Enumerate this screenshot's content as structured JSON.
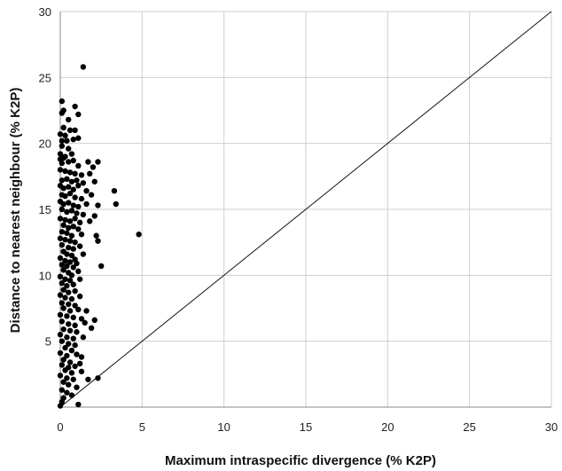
{
  "chart_data": {
    "type": "scatter",
    "title": "",
    "xlabel": "Maximum intraspecific divergence (% K2P)",
    "ylabel": "Distance to nearest neighbour (% K2P)",
    "xlim": [
      0,
      30
    ],
    "ylim": [
      0,
      30
    ],
    "x_ticks": [
      0,
      5,
      10,
      15,
      20,
      25,
      30
    ],
    "y_ticks": [
      5,
      10,
      15,
      20,
      25,
      30
    ],
    "grid": true,
    "reference_line": {
      "label": "",
      "x": [
        0,
        30
      ],
      "y": [
        0,
        30
      ]
    },
    "series": [
      {
        "marker_color": "#000000",
        "points": [
          [
            1.4,
            25.8
          ],
          [
            0.1,
            23.2
          ],
          [
            0.1,
            22.3
          ],
          [
            0.2,
            22.5
          ],
          [
            0.9,
            22.8
          ],
          [
            1.1,
            22.2
          ],
          [
            0.5,
            21.8
          ],
          [
            0.2,
            21.2
          ],
          [
            0.6,
            21.0
          ],
          [
            0.9,
            21.0
          ],
          [
            0.0,
            20.7
          ],
          [
            0.3,
            20.6
          ],
          [
            0.1,
            20.2
          ],
          [
            0.4,
            20.2
          ],
          [
            0.8,
            20.3
          ],
          [
            1.1,
            20.4
          ],
          [
            0.1,
            19.8
          ],
          [
            0.5,
            19.6
          ],
          [
            0.0,
            19.2
          ],
          [
            0.3,
            19.0
          ],
          [
            0.7,
            19.2
          ],
          [
            0.0,
            18.8
          ],
          [
            0.1,
            18.5
          ],
          [
            0.2,
            18.9
          ],
          [
            0.5,
            18.6
          ],
          [
            0.8,
            18.7
          ],
          [
            1.1,
            18.3
          ],
          [
            1.7,
            18.6
          ],
          [
            2.3,
            18.6
          ],
          [
            2.0,
            18.2
          ],
          [
            0.0,
            18.0
          ],
          [
            0.3,
            17.9
          ],
          [
            0.6,
            17.8
          ],
          [
            0.9,
            17.7
          ],
          [
            1.3,
            17.6
          ],
          [
            1.8,
            17.7
          ],
          [
            0.1,
            17.2
          ],
          [
            0.4,
            17.3
          ],
          [
            0.7,
            17.1
          ],
          [
            1.0,
            17.2
          ],
          [
            1.4,
            17.0
          ],
          [
            2.1,
            17.1
          ],
          [
            0.0,
            16.8
          ],
          [
            0.2,
            16.6
          ],
          [
            0.5,
            16.7
          ],
          [
            0.8,
            16.5
          ],
          [
            1.1,
            16.8
          ],
          [
            1.6,
            16.4
          ],
          [
            3.3,
            16.4
          ],
          [
            0.1,
            16.1
          ],
          [
            0.3,
            16.0
          ],
          [
            0.6,
            16.2
          ],
          [
            0.9,
            15.9
          ],
          [
            1.3,
            15.8
          ],
          [
            1.9,
            16.1
          ],
          [
            0.0,
            15.6
          ],
          [
            0.2,
            15.4
          ],
          [
            0.5,
            15.5
          ],
          [
            0.8,
            15.3
          ],
          [
            1.1,
            15.2
          ],
          [
            1.6,
            15.4
          ],
          [
            2.3,
            15.3
          ],
          [
            3.4,
            15.4
          ],
          [
            0.1,
            15.0
          ],
          [
            0.4,
            14.8
          ],
          [
            0.7,
            14.9
          ],
          [
            1.0,
            14.7
          ],
          [
            1.4,
            14.6
          ],
          [
            2.1,
            14.5
          ],
          [
            0.0,
            14.3
          ],
          [
            0.3,
            14.2
          ],
          [
            0.6,
            14.1
          ],
          [
            0.9,
            14.3
          ],
          [
            1.2,
            14.0
          ],
          [
            1.8,
            14.1
          ],
          [
            0.2,
            13.8
          ],
          [
            0.5,
            13.6
          ],
          [
            0.8,
            13.7
          ],
          [
            1.1,
            13.5
          ],
          [
            0.1,
            13.3
          ],
          [
            0.4,
            13.2
          ],
          [
            0.7,
            13.0
          ],
          [
            1.3,
            13.1
          ],
          [
            2.2,
            13.0
          ],
          [
            4.8,
            13.1
          ],
          [
            0.0,
            12.8
          ],
          [
            0.3,
            12.7
          ],
          [
            0.6,
            12.6
          ],
          [
            0.9,
            12.5
          ],
          [
            2.3,
            12.6
          ],
          [
            0.1,
            12.3
          ],
          [
            0.5,
            12.1
          ],
          [
            0.8,
            12.0
          ],
          [
            1.2,
            12.2
          ],
          [
            0.2,
            11.8
          ],
          [
            0.4,
            11.6
          ],
          [
            0.7,
            11.5
          ],
          [
            1.4,
            11.6
          ],
          [
            0.0,
            11.3
          ],
          [
            0.3,
            11.1
          ],
          [
            0.6,
            11.0
          ],
          [
            0.9,
            11.2
          ],
          [
            0.1,
            10.8
          ],
          [
            0.4,
            10.7
          ],
          [
            0.8,
            10.6
          ],
          [
            1.0,
            10.9
          ],
          [
            2.5,
            10.7
          ],
          [
            0.2,
            10.4
          ],
          [
            0.5,
            10.2
          ],
          [
            0.7,
            10.0
          ],
          [
            1.1,
            10.3
          ],
          [
            0.0,
            9.9
          ],
          [
            0.3,
            9.7
          ],
          [
            0.6,
            9.6
          ],
          [
            1.2,
            9.7
          ],
          [
            0.1,
            9.4
          ],
          [
            0.4,
            9.2
          ],
          [
            0.8,
            9.3
          ],
          [
            0.2,
            8.9
          ],
          [
            0.5,
            8.7
          ],
          [
            0.9,
            8.8
          ],
          [
            0.0,
            8.5
          ],
          [
            0.3,
            8.3
          ],
          [
            0.7,
            8.2
          ],
          [
            1.2,
            8.4
          ],
          [
            0.1,
            7.9
          ],
          [
            0.5,
            7.8
          ],
          [
            0.9,
            7.7
          ],
          [
            0.2,
            7.5
          ],
          [
            0.6,
            7.3
          ],
          [
            1.1,
            7.4
          ],
          [
            1.6,
            7.3
          ],
          [
            0.0,
            7.0
          ],
          [
            0.4,
            6.9
          ],
          [
            0.8,
            6.8
          ],
          [
            1.3,
            6.7
          ],
          [
            2.1,
            6.6
          ],
          [
            0.1,
            6.5
          ],
          [
            0.5,
            6.3
          ],
          [
            0.9,
            6.2
          ],
          [
            1.5,
            6.4
          ],
          [
            1.9,
            6.0
          ],
          [
            0.2,
            5.9
          ],
          [
            0.6,
            5.8
          ],
          [
            1.0,
            5.7
          ],
          [
            0.0,
            5.5
          ],
          [
            0.4,
            5.3
          ],
          [
            0.8,
            5.2
          ],
          [
            1.4,
            5.3
          ],
          [
            0.1,
            5.0
          ],
          [
            0.5,
            4.8
          ],
          [
            0.9,
            4.7
          ],
          [
            0.3,
            4.5
          ],
          [
            0.7,
            4.3
          ],
          [
            0.0,
            4.1
          ],
          [
            0.4,
            3.9
          ],
          [
            1.0,
            4.0
          ],
          [
            1.3,
            3.8
          ],
          [
            0.2,
            3.6
          ],
          [
            0.6,
            3.4
          ],
          [
            0.1,
            3.2
          ],
          [
            0.5,
            3.0
          ],
          [
            0.9,
            3.1
          ],
          [
            1.2,
            3.3
          ],
          [
            0.3,
            2.8
          ],
          [
            0.7,
            2.6
          ],
          [
            1.3,
            2.7
          ],
          [
            0.0,
            2.4
          ],
          [
            0.4,
            2.2
          ],
          [
            0.8,
            2.1
          ],
          [
            1.7,
            2.1
          ],
          [
            2.3,
            2.2
          ],
          [
            0.2,
            1.9
          ],
          [
            0.5,
            1.7
          ],
          [
            1.0,
            1.5
          ],
          [
            0.1,
            1.3
          ],
          [
            0.4,
            1.1
          ],
          [
            0.7,
            0.9
          ],
          [
            0.2,
            0.7
          ],
          [
            0.1,
            0.4
          ],
          [
            1.1,
            0.2
          ],
          [
            0.0,
            0.1
          ]
        ]
      }
    ]
  }
}
